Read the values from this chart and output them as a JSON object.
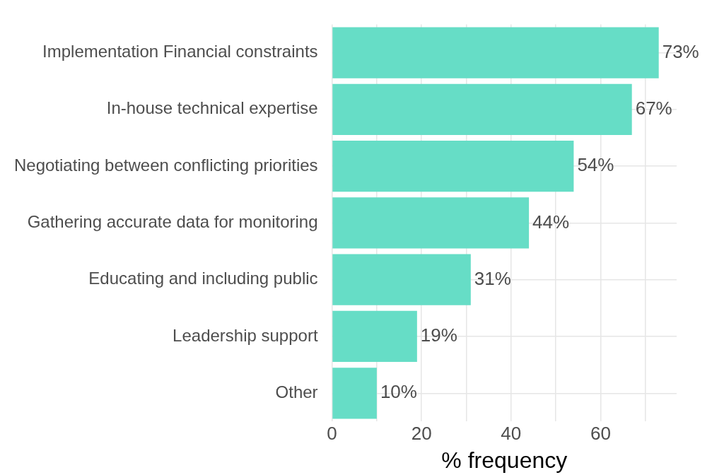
{
  "chart_data": {
    "type": "bar",
    "orientation": "horizontal",
    "xlabel": "% frequency",
    "categories": [
      "Implementation Financial constraints",
      "In-house technical expertise",
      "Negotiating between conflicting priorities",
      "Gathering accurate data for monitoring",
      "Educating and including public",
      "Leadership support",
      "Other"
    ],
    "values": [
      73,
      67,
      54,
      44,
      31,
      19,
      10
    ],
    "value_labels": [
      "73%",
      "67%",
      "54%",
      "44%",
      "31%",
      "19%",
      "10%"
    ],
    "color": "#66ddc6",
    "xlim": [
      0,
      77
    ],
    "xticks": [
      0,
      {
        "value": 10,
        "label": null
      },
      20,
      {
        "value": 30,
        "label": null
      },
      40,
      {
        "value": 50,
        "label": null
      },
      60,
      {
        "value": 70,
        "label": null
      }
    ],
    "grid": true,
    "legend": false
  }
}
